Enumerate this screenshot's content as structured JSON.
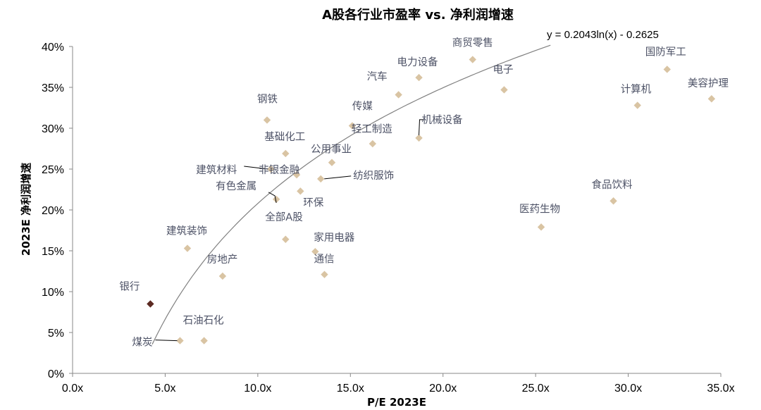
{
  "chart_data": {
    "type": "scatter",
    "title": "A股各行业市盈率 vs. 净利润增速",
    "xlabel": "P/E 2023E",
    "ylabel": "2023E 净利润增速",
    "xlim": [
      0,
      35
    ],
    "ylim": [
      0,
      40
    ],
    "x_ticks": [
      "0.0x",
      "5.0x",
      "10.0x",
      "15.0x",
      "20.0x",
      "25.0x",
      "30.0x",
      "35.0x"
    ],
    "y_ticks": [
      "0%",
      "5%",
      "10%",
      "15%",
      "20%",
      "25%",
      "30%",
      "35%",
      "40%"
    ],
    "grid": false,
    "colors": {
      "point": "#d9c4a3",
      "highlight": "#5c2a22",
      "trend": "#808080",
      "label": "#4d5266"
    },
    "trendline": {
      "label": "y = 0.2043ln(x) - 0.2625",
      "a": 0.2043,
      "b": -0.2625,
      "x_range": [
        4.3,
        25.8
      ]
    },
    "points": [
      {
        "name": "银行",
        "x": 4.2,
        "y": 8.5,
        "highlight": true
      },
      {
        "name": "煤炭",
        "x": 5.8,
        "y": 4.0
      },
      {
        "name": "石油石化",
        "x": 7.1,
        "y": 4.0
      },
      {
        "name": "建筑装饰",
        "x": 6.2,
        "y": 15.3
      },
      {
        "name": "房地产",
        "x": 8.1,
        "y": 11.9
      },
      {
        "name": "钢铁",
        "x": 10.5,
        "y": 31.0
      },
      {
        "name": "建筑材料",
        "x": 10.7,
        "y": 25.0
      },
      {
        "name": "有色金属",
        "x": 11.0,
        "y": 21.3
      },
      {
        "name": "基础化工",
        "x": 11.5,
        "y": 26.9
      },
      {
        "name": "非银金融",
        "x": 12.1,
        "y": 24.3
      },
      {
        "name": "环保",
        "x": 12.3,
        "y": 22.3
      },
      {
        "name": "全部A股",
        "x": 11.5,
        "y": 16.4
      },
      {
        "name": "家用电器",
        "x": 13.1,
        "y": 14.9
      },
      {
        "name": "通信",
        "x": 13.6,
        "y": 12.1
      },
      {
        "name": "纺织服饰",
        "x": 13.4,
        "y": 23.8
      },
      {
        "name": "公用事业",
        "x": 14.0,
        "y": 25.8
      },
      {
        "name": "传媒",
        "x": 15.1,
        "y": 30.3
      },
      {
        "name": "轻工制造",
        "x": 16.2,
        "y": 28.1
      },
      {
        "name": "汽车",
        "x": 17.6,
        "y": 34.1
      },
      {
        "name": "电力设备",
        "x": 18.7,
        "y": 36.2
      },
      {
        "name": "机械设备",
        "x": 18.7,
        "y": 28.8
      },
      {
        "name": "商贸零售",
        "x": 21.6,
        "y": 38.4
      },
      {
        "name": "电子",
        "x": 23.3,
        "y": 34.7
      },
      {
        "name": "医药生物",
        "x": 25.3,
        "y": 17.9
      },
      {
        "name": "食品饮料",
        "x": 29.2,
        "y": 21.1
      },
      {
        "name": "计算机",
        "x": 30.5,
        "y": 32.8
      },
      {
        "name": "国防军工",
        "x": 32.1,
        "y": 37.2
      },
      {
        "name": "美容护理",
        "x": 34.5,
        "y": 33.6
      }
    ]
  }
}
